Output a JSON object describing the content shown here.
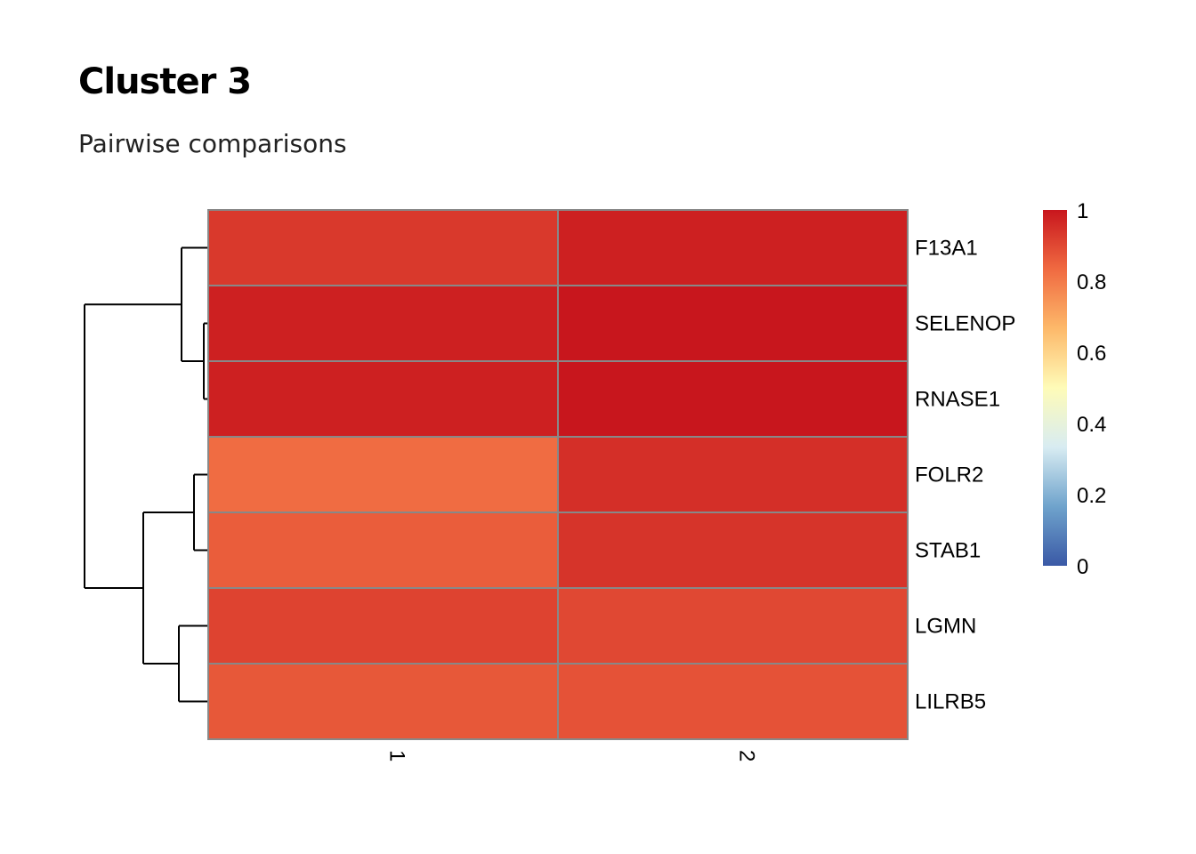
{
  "chart_data": {
    "type": "heatmap",
    "title": "Cluster 3",
    "subtitle": "Pairwise comparisons",
    "columns": [
      "1",
      "2"
    ],
    "rows": [
      "F13A1",
      "SELENOP",
      "RNASE1",
      "FOLR2",
      "STAB1",
      "LGMN",
      "LILRB5"
    ],
    "values": [
      [
        0.93,
        0.98
      ],
      [
        0.98,
        1.0
      ],
      [
        0.98,
        1.0
      ],
      [
        0.83,
        0.95
      ],
      [
        0.86,
        0.94
      ],
      [
        0.91,
        0.9
      ],
      [
        0.87,
        0.88
      ]
    ],
    "scale_range": [
      0,
      1
    ],
    "color_scale": [
      "#3a59a6",
      "#6fa3cc",
      "#d8ecf2",
      "#fefbb8",
      "#fdb96a",
      "#f06a41",
      "#c8161d"
    ],
    "legend_ticks": [
      "1",
      "0.8",
      "0.6",
      "0.4",
      "0.2",
      "0"
    ],
    "row_dendrogram": true,
    "cell_border_color": "#888888"
  }
}
